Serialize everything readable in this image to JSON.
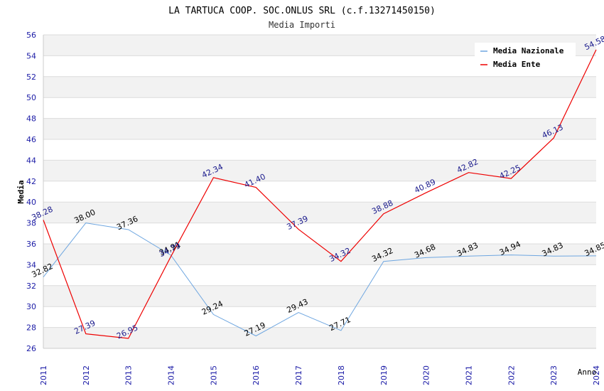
{
  "chart_data": {
    "type": "line",
    "title": "LA TARTUCA COOP. SOC.ONLUS SRL (c.f.13271450150)",
    "subtitle": "Media Importi",
    "xlabel": "Anno",
    "ylabel": "Media",
    "ylim": [
      26,
      56
    ],
    "ytick_step": 2,
    "grid": true,
    "legend_position": "top-right",
    "categories": [
      "2011",
      "2012",
      "2013",
      "2014",
      "2015",
      "2016",
      "2017",
      "2018",
      "2019",
      "2020",
      "2021",
      "2022",
      "2023",
      "2024"
    ],
    "series": [
      {
        "name": "Media Nazionale",
        "color": "#6ea6e0",
        "label_color": "#000000",
        "values": [
          32.82,
          38.0,
          37.36,
          34.91,
          29.24,
          27.19,
          29.43,
          27.71,
          34.32,
          34.68,
          34.83,
          34.94,
          34.83,
          34.85
        ],
        "labels": [
          "32.82",
          "38.00",
          "37.36",
          "34.91",
          "29.24",
          "27.19",
          "29.43",
          "27.71",
          "34.32",
          "34.68",
          "34.83",
          "34.94",
          "34.83",
          "34.85"
        ]
      },
      {
        "name": "Media Ente",
        "color": "#ee0000",
        "label_color": "#1a1a8c",
        "values": [
          38.28,
          27.39,
          26.95,
          34.79,
          42.34,
          41.4,
          37.39,
          34.32,
          38.88,
          40.89,
          42.82,
          42.25,
          46.13,
          54.58
        ],
        "labels": [
          "38.28",
          "27.39",
          "26.95",
          "34.79",
          "42.34",
          "41.40",
          "37.39",
          "34.32",
          "38.88",
          "40.89",
          "42.82",
          "42.25",
          "46.13",
          "54.58"
        ]
      }
    ]
  }
}
